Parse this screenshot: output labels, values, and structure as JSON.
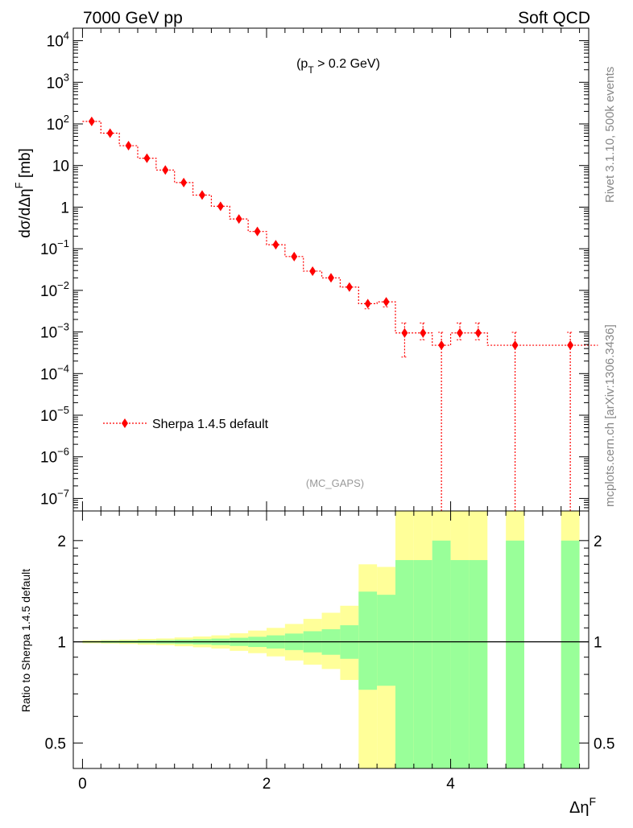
{
  "header": {
    "left": "7000 GeV pp",
    "right": "Soft QCD"
  },
  "side_labels": {
    "top": "Rivet 3.1.10,  500k events",
    "bottom": "mcplots.cern.ch [arXiv:1306.3436]"
  },
  "main_panel": {
    "annotation": "(p_T > 0.2 GeV)",
    "watermark": "(MC_GAPS)",
    "ylabel": "dσ/dΔη^F [mb]"
  },
  "ratio_panel": {
    "ylabel": "Ratio to Sherpa 1.4.5 default"
  },
  "xlabel": "Δη^F",
  "colors": {
    "series": "#ff0000",
    "band_outer": "#ffff99",
    "band_inner": "#99ff99",
    "axis": "#000000"
  },
  "chart_data": [
    {
      "type": "scatter",
      "panel": "main",
      "yscale": "log",
      "xlim": [
        -0.1,
        5.5
      ],
      "ylim": [
        5e-08,
        20000
      ],
      "yticks": [
        {
          "value": 10000,
          "label": "10^4"
        },
        {
          "value": 1000,
          "label": "10^3"
        },
        {
          "value": 100,
          "label": "10^2"
        },
        {
          "value": 10,
          "label": "10"
        },
        {
          "value": 1,
          "label": "1"
        },
        {
          "value": 0.1,
          "label": "10^-1"
        },
        {
          "value": 0.01,
          "label": "10^-2"
        },
        {
          "value": 0.001,
          "label": "10^-3"
        },
        {
          "value": 0.0001,
          "label": "10^-4"
        },
        {
          "value": 1e-05,
          "label": "10^-5"
        },
        {
          "value": 1e-06,
          "label": "10^-6"
        },
        {
          "value": 1e-07,
          "label": "10^-7"
        }
      ],
      "legend": {
        "label": "Sherpa 1.4.5 default",
        "placement": "lower-left"
      },
      "series": [
        {
          "name": "Sherpa 1.4.5 default",
          "color": "#ff0000",
          "x": [
            0.1,
            0.3,
            0.5,
            0.7,
            0.9,
            1.1,
            1.3,
            1.5,
            1.7,
            1.9,
            2.1,
            2.3,
            2.5,
            2.7,
            2.9,
            3.1,
            3.3,
            3.5,
            3.7,
            3.9,
            4.1,
            4.3,
            4.7,
            5.3
          ],
          "xerr": [
            0.1,
            0.1,
            0.1,
            0.1,
            0.1,
            0.1,
            0.1,
            0.1,
            0.1,
            0.1,
            0.1,
            0.1,
            0.1,
            0.1,
            0.1,
            0.1,
            0.1,
            0.1,
            0.1,
            0.1,
            0.1,
            0.1,
            0.3,
            0.3
          ],
          "y": [
            115,
            60,
            30,
            15,
            7.8,
            3.9,
            1.95,
            1.05,
            0.52,
            0.26,
            0.125,
            0.065,
            0.029,
            0.02,
            0.012,
            0.0048,
            0.0053,
            0.00095,
            0.00095,
            0.00048,
            0.00095,
            0.00095,
            0.00048,
            0.00048
          ],
          "yerr_low": [
            2,
            1,
            0.5,
            0.2,
            0.1,
            0.05,
            0.03,
            0.02,
            0.01,
            0.005,
            0.003,
            0.002,
            0.002,
            0.002,
            0.0015,
            0.0012,
            0.0013,
            0.0007,
            0.0003,
            0.00048,
            0.0003,
            0.0003,
            0.00048,
            0.00048
          ],
          "yerr_high": [
            2,
            1,
            0.5,
            0.2,
            0.1,
            0.05,
            0.03,
            0.02,
            0.01,
            0.005,
            0.003,
            0.002,
            0.002,
            0.002,
            0.0015,
            0.0012,
            0.0013,
            0.0007,
            0.0007,
            0.0005,
            0.0007,
            0.0007,
            0.0005,
            0.0005
          ]
        }
      ]
    },
    {
      "type": "area",
      "panel": "ratio",
      "yscale": "log",
      "xlim": [
        -0.1,
        5.5
      ],
      "ylim": [
        0.42,
        2.45
      ],
      "reference_line": 1,
      "xticks": [
        {
          "value": 0,
          "label": "0"
        },
        {
          "value": 2,
          "label": "2"
        },
        {
          "value": 4,
          "label": "4"
        }
      ],
      "yticks": [
        {
          "value": 0.5,
          "label": "0.5"
        },
        {
          "value": 1,
          "label": "1"
        },
        {
          "value": 2,
          "label": "2"
        }
      ],
      "bins": [
        {
          "x0": 0.0,
          "x1": 0.2,
          "inner": [
            0.995,
            1.005
          ],
          "outer": [
            0.99,
            1.01
          ]
        },
        {
          "x0": 0.2,
          "x1": 0.4,
          "inner": [
            0.993,
            1.007
          ],
          "outer": [
            0.988,
            1.012
          ]
        },
        {
          "x0": 0.4,
          "x1": 0.6,
          "inner": [
            0.992,
            1.008
          ],
          "outer": [
            0.985,
            1.015
          ]
        },
        {
          "x0": 0.6,
          "x1": 0.8,
          "inner": [
            0.99,
            1.01
          ],
          "outer": [
            0.98,
            1.02
          ]
        },
        {
          "x0": 0.8,
          "x1": 1.0,
          "inner": [
            0.988,
            1.012
          ],
          "outer": [
            0.977,
            1.023
          ]
        },
        {
          "x0": 1.0,
          "x1": 1.2,
          "inner": [
            0.985,
            1.015
          ],
          "outer": [
            0.97,
            1.03
          ]
        },
        {
          "x0": 1.2,
          "x1": 1.4,
          "inner": [
            0.982,
            1.018
          ],
          "outer": [
            0.963,
            1.037
          ]
        },
        {
          "x0": 1.4,
          "x1": 1.6,
          "inner": [
            0.978,
            1.022
          ],
          "outer": [
            0.955,
            1.045
          ]
        },
        {
          "x0": 1.6,
          "x1": 1.8,
          "inner": [
            0.972,
            1.028
          ],
          "outer": [
            0.94,
            1.06
          ]
        },
        {
          "x0": 1.8,
          "x1": 2.0,
          "inner": [
            0.965,
            1.035
          ],
          "outer": [
            0.925,
            1.08
          ]
        },
        {
          "x0": 2.0,
          "x1": 2.2,
          "inner": [
            0.955,
            1.045
          ],
          "outer": [
            0.905,
            1.1
          ]
        },
        {
          "x0": 2.2,
          "x1": 2.4,
          "inner": [
            0.945,
            1.058
          ],
          "outer": [
            0.88,
            1.13
          ]
        },
        {
          "x0": 2.4,
          "x1": 2.6,
          "inner": [
            0.93,
            1.075
          ],
          "outer": [
            0.855,
            1.17
          ]
        },
        {
          "x0": 2.6,
          "x1": 2.8,
          "inner": [
            0.915,
            1.09
          ],
          "outer": [
            0.83,
            1.22
          ]
        },
        {
          "x0": 2.8,
          "x1": 3.0,
          "inner": [
            0.89,
            1.12
          ],
          "outer": [
            0.77,
            1.28
          ]
        },
        {
          "x0": 3.0,
          "x1": 3.2,
          "inner": [
            0.72,
            1.41
          ],
          "outer": [
            0.42,
            1.7
          ]
        },
        {
          "x0": 3.2,
          "x1": 3.4,
          "inner": [
            0.74,
            1.38
          ],
          "outer": [
            0.42,
            1.67
          ]
        },
        {
          "x0": 3.4,
          "x1": 3.6,
          "inner": [
            0.42,
            1.75
          ],
          "outer": [
            0.42,
            2.45
          ]
        },
        {
          "x0": 3.6,
          "x1": 3.8,
          "inner": [
            0.42,
            1.75
          ],
          "outer": [
            0.42,
            2.45
          ]
        },
        {
          "x0": 3.8,
          "x1": 4.0,
          "inner": [
            0.42,
            2.0
          ],
          "outer": [
            0.42,
            2.45
          ]
        },
        {
          "x0": 4.0,
          "x1": 4.2,
          "inner": [
            0.42,
            1.75
          ],
          "outer": [
            0.42,
            2.45
          ]
        },
        {
          "x0": 4.2,
          "x1": 4.4,
          "inner": [
            0.42,
            1.75
          ],
          "outer": [
            0.42,
            2.45
          ]
        },
        {
          "x0": 4.6,
          "x1": 4.8,
          "inner": [
            0.42,
            2.0
          ],
          "outer": [
            0.42,
            2.45
          ]
        },
        {
          "x0": 5.2,
          "x1": 5.4,
          "inner": [
            0.42,
            2.0
          ],
          "outer": [
            0.42,
            2.45
          ]
        }
      ]
    }
  ]
}
